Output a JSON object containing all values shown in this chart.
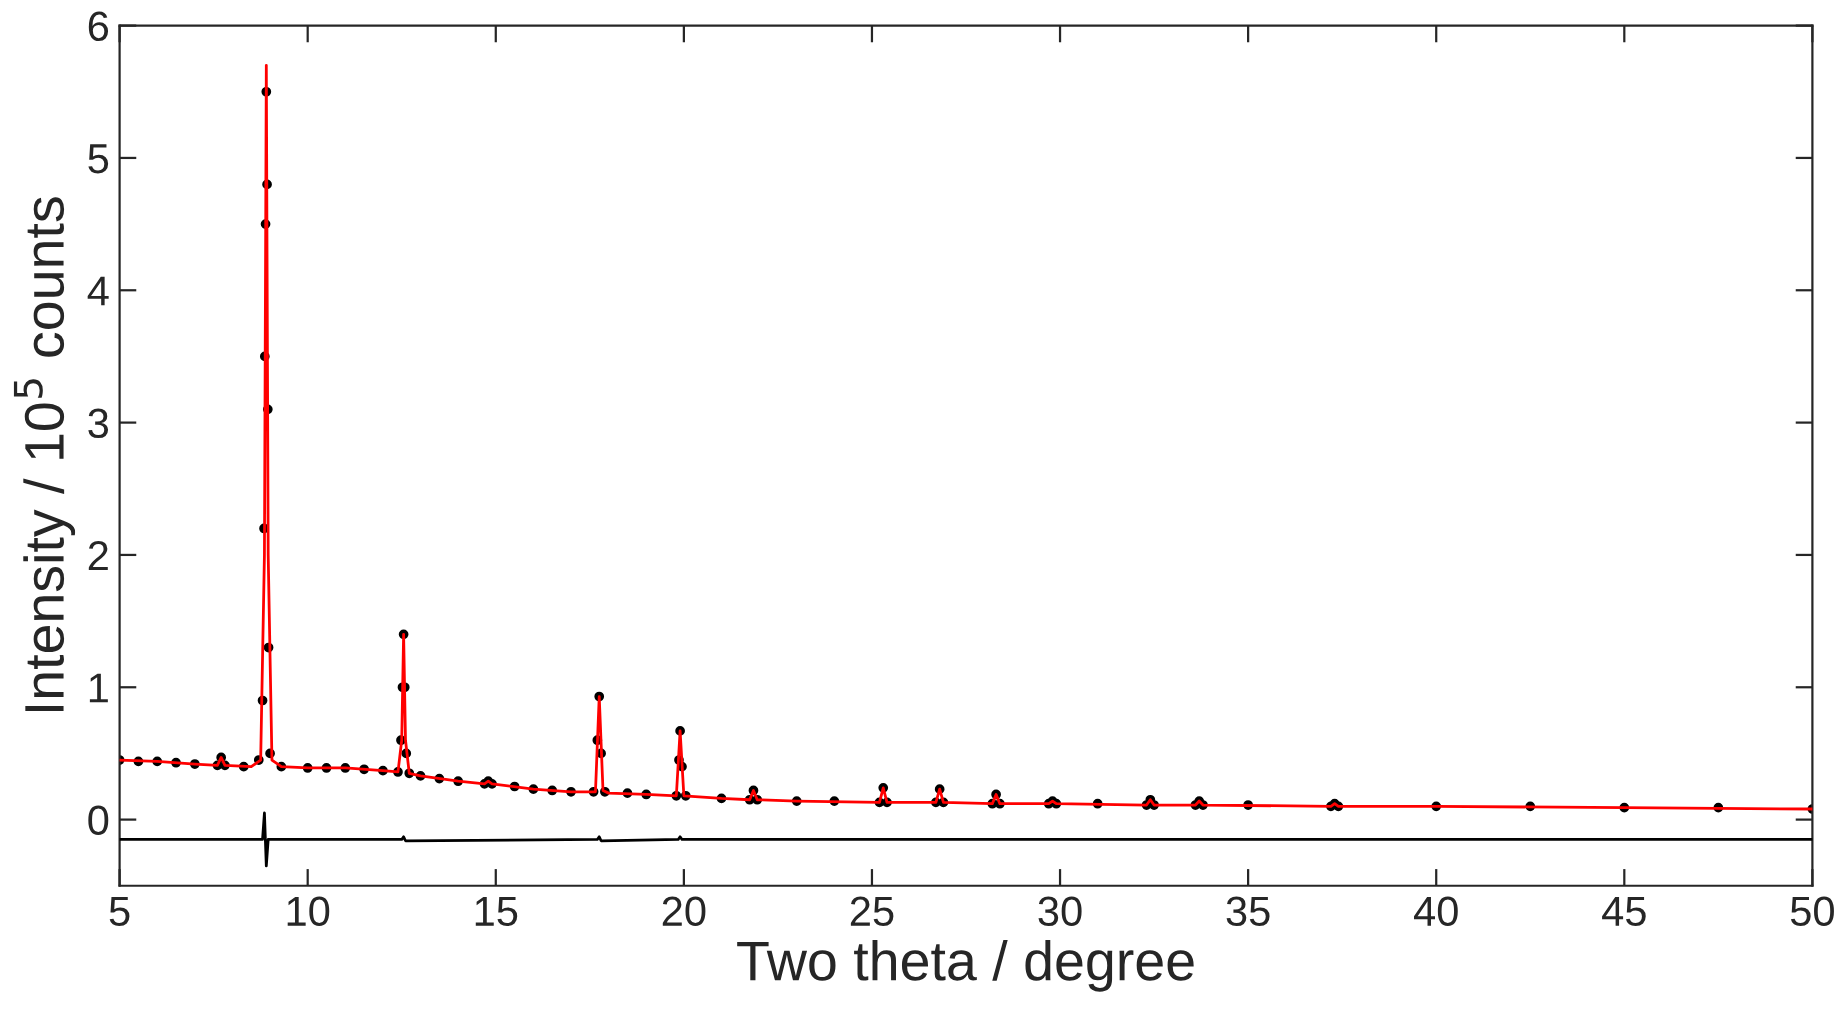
{
  "chart_data": {
    "type": "line",
    "xlabel": "Two theta / degree",
    "ylabel": "Intensity / 10$^{5}$ counts",
    "xlim": [
      5,
      50
    ],
    "ylim": [
      -0.5,
      6
    ],
    "xticks": [
      5,
      10,
      15,
      20,
      25,
      30,
      35,
      40,
      45,
      50
    ],
    "yticks": [
      0,
      1,
      2,
      3,
      4,
      5,
      6
    ],
    "grid": false,
    "series": [
      {
        "type": "scatter",
        "marker": "circle",
        "color": "#000000",
        "x": [
          5,
          5.5,
          6,
          6.5,
          7,
          7.6,
          7.7,
          7.8,
          8.3,
          8.7,
          8.8,
          8.84,
          8.86,
          8.88,
          8.9,
          8.92,
          8.94,
          8.96,
          9.0,
          9.3,
          10,
          10.5,
          11,
          11.5,
          12,
          12.4,
          12.48,
          12.52,
          12.55,
          12.58,
          12.62,
          12.7,
          13,
          13.5,
          14,
          14.7,
          14.8,
          14.9,
          15.5,
          16,
          16.5,
          17,
          17.6,
          17.7,
          17.75,
          17.8,
          17.9,
          18.5,
          19,
          19.8,
          19.87,
          19.9,
          19.95,
          20.05,
          21,
          21.75,
          21.85,
          21.95,
          23,
          24,
          25.2,
          25.3,
          25.4,
          26.7,
          26.8,
          26.9,
          28.2,
          28.3,
          28.4,
          29.7,
          29.8,
          29.9,
          31,
          32.3,
          32.4,
          32.5,
          33.6,
          33.7,
          33.8,
          35,
          37.2,
          37.3,
          37.4,
          40,
          42.5,
          45,
          47.5,
          50
        ],
        "values": [
          0.45,
          0.44,
          0.44,
          0.43,
          0.42,
          0.41,
          0.47,
          0.41,
          0.4,
          0.45,
          0.9,
          2.2,
          3.5,
          4.5,
          5.5,
          4.8,
          3.1,
          1.3,
          0.5,
          0.4,
          0.39,
          0.39,
          0.39,
          0.38,
          0.37,
          0.36,
          0.6,
          1.0,
          1.4,
          1.0,
          0.5,
          0.35,
          0.33,
          0.31,
          0.29,
          0.27,
          0.29,
          0.27,
          0.25,
          0.23,
          0.22,
          0.21,
          0.21,
          0.6,
          0.93,
          0.5,
          0.21,
          0.2,
          0.19,
          0.18,
          0.45,
          0.67,
          0.4,
          0.18,
          0.16,
          0.15,
          0.22,
          0.15,
          0.14,
          0.14,
          0.13,
          0.24,
          0.13,
          0.13,
          0.23,
          0.13,
          0.12,
          0.19,
          0.12,
          0.12,
          0.14,
          0.12,
          0.12,
          0.11,
          0.15,
          0.11,
          0.11,
          0.14,
          0.11,
          0.11,
          0.1,
          0.12,
          0.1,
          0.1,
          0.1,
          0.09,
          0.09,
          0.08
        ]
      },
      {
        "color": "#ff0000",
        "x": [
          5,
          6,
          7,
          7.6,
          7.7,
          7.8,
          8.5,
          8.75,
          8.85,
          8.9,
          8.95,
          9.05,
          9.3,
          10,
          11,
          12,
          12.4,
          12.5,
          12.55,
          12.6,
          12.7,
          13,
          14,
          14.7,
          14.8,
          14.9,
          16,
          17,
          17.65,
          17.75,
          17.85,
          18,
          19,
          19.8,
          19.9,
          20,
          21,
          21.75,
          21.85,
          21.95,
          23,
          25.2,
          25.3,
          25.4,
          26.7,
          26.8,
          26.9,
          28.2,
          28.3,
          28.4,
          29.7,
          29.8,
          29.9,
          32.3,
          32.4,
          32.5,
          33.6,
          33.7,
          33.8,
          37.2,
          37.3,
          37.4,
          40,
          45,
          50
        ],
        "values": [
          0.45,
          0.44,
          0.42,
          0.41,
          0.47,
          0.41,
          0.4,
          0.45,
          2.0,
          5.7,
          2.0,
          0.45,
          0.4,
          0.39,
          0.39,
          0.37,
          0.36,
          0.6,
          1.4,
          0.6,
          0.35,
          0.33,
          0.29,
          0.27,
          0.29,
          0.27,
          0.23,
          0.21,
          0.21,
          0.93,
          0.22,
          0.2,
          0.19,
          0.18,
          0.67,
          0.18,
          0.16,
          0.15,
          0.22,
          0.15,
          0.14,
          0.13,
          0.24,
          0.13,
          0.13,
          0.23,
          0.13,
          0.12,
          0.19,
          0.12,
          0.12,
          0.14,
          0.12,
          0.11,
          0.15,
          0.11,
          0.11,
          0.14,
          0.11,
          0.1,
          0.12,
          0.1,
          0.1,
          0.09,
          0.08
        ]
      },
      {
        "type": "line",
        "color": "#000000",
        "x": [
          5,
          8.8,
          8.85,
          8.9,
          8.95,
          12.5,
          12.55,
          12.6,
          17.7,
          17.75,
          17.8,
          19.85,
          19.9,
          19.95,
          50
        ],
        "values": [
          -0.15,
          -0.15,
          0.05,
          -0.35,
          -0.15,
          -0.15,
          -0.13,
          -0.16,
          -0.15,
          -0.13,
          -0.16,
          -0.15,
          -0.13,
          -0.15,
          -0.15
        ]
      }
    ]
  }
}
